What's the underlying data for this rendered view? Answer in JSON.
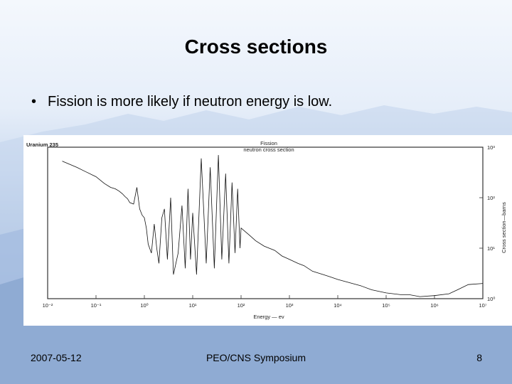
{
  "slide": {
    "title": "Cross sections",
    "bullet": "Fission is more likely if neutron energy is low."
  },
  "footer": {
    "date": "2007-05-12",
    "event": "PEO/CNS Symposium",
    "page": "8"
  },
  "chart_data": {
    "type": "line",
    "title": "Fission",
    "subtitle": "neutron cross section",
    "corner_label": "Uranium 235",
    "xlabel": "Energy — ev",
    "ylabel": "Cross section—barns",
    "xscale": "log",
    "yscale": "log",
    "xlim": [
      0.01,
      10000000
    ],
    "ylim": [
      1,
      1000
    ],
    "x_ticks": [
      "10⁻²",
      "10⁻¹",
      "10⁰",
      "10¹",
      "10²",
      "10³",
      "10⁴",
      "10⁵",
      "10⁶",
      "10⁷"
    ],
    "y_ticks": [
      "10⁰",
      "10¹",
      "10²",
      "10³"
    ],
    "grid": false,
    "series": [
      {
        "x": [
          0.02,
          0.04,
          0.06,
          0.1,
          0.15,
          0.2,
          0.25,
          0.3,
          0.35,
          0.4,
          0.45,
          0.5,
          0.6,
          0.7,
          0.8,
          0.9,
          1.0,
          1.1,
          1.2,
          1.4,
          1.6,
          1.8,
          2.0,
          2.3,
          2.6,
          3.0,
          3.5,
          4.0,
          5.0,
          6.0,
          7.0,
          8.0,
          9.0,
          10,
          12,
          15,
          19,
          23,
          28,
          34,
          40,
          48,
          56,
          65,
          75,
          85,
          95,
          100,
          150,
          200,
          300,
          500,
          700,
          1000,
          1500,
          2000,
          3000,
          5000,
          7000,
          10000,
          20000,
          30000,
          50000,
          100000,
          200000,
          300000,
          500000,
          1000000,
          2000000,
          3000000,
          5000000,
          10000000
        ],
        "y": [
          530,
          400,
          330,
          260,
          190,
          160,
          150,
          135,
          120,
          105,
          95,
          80,
          75,
          160,
          60,
          45,
          40,
          25,
          12,
          8,
          30,
          10,
          5,
          40,
          60,
          6,
          100,
          3,
          8,
          70,
          4,
          150,
          6,
          50,
          3,
          600,
          5,
          400,
          4,
          700,
          6,
          300,
          5,
          200,
          8,
          150,
          10,
          25,
          18,
          14,
          11,
          9,
          7,
          6,
          5,
          4.5,
          3.5,
          3,
          2.7,
          2.4,
          2,
          1.8,
          1.5,
          1.3,
          1.2,
          1.2,
          1.1,
          1.15,
          1.25,
          1.5,
          1.9,
          2.0
        ]
      }
    ]
  }
}
